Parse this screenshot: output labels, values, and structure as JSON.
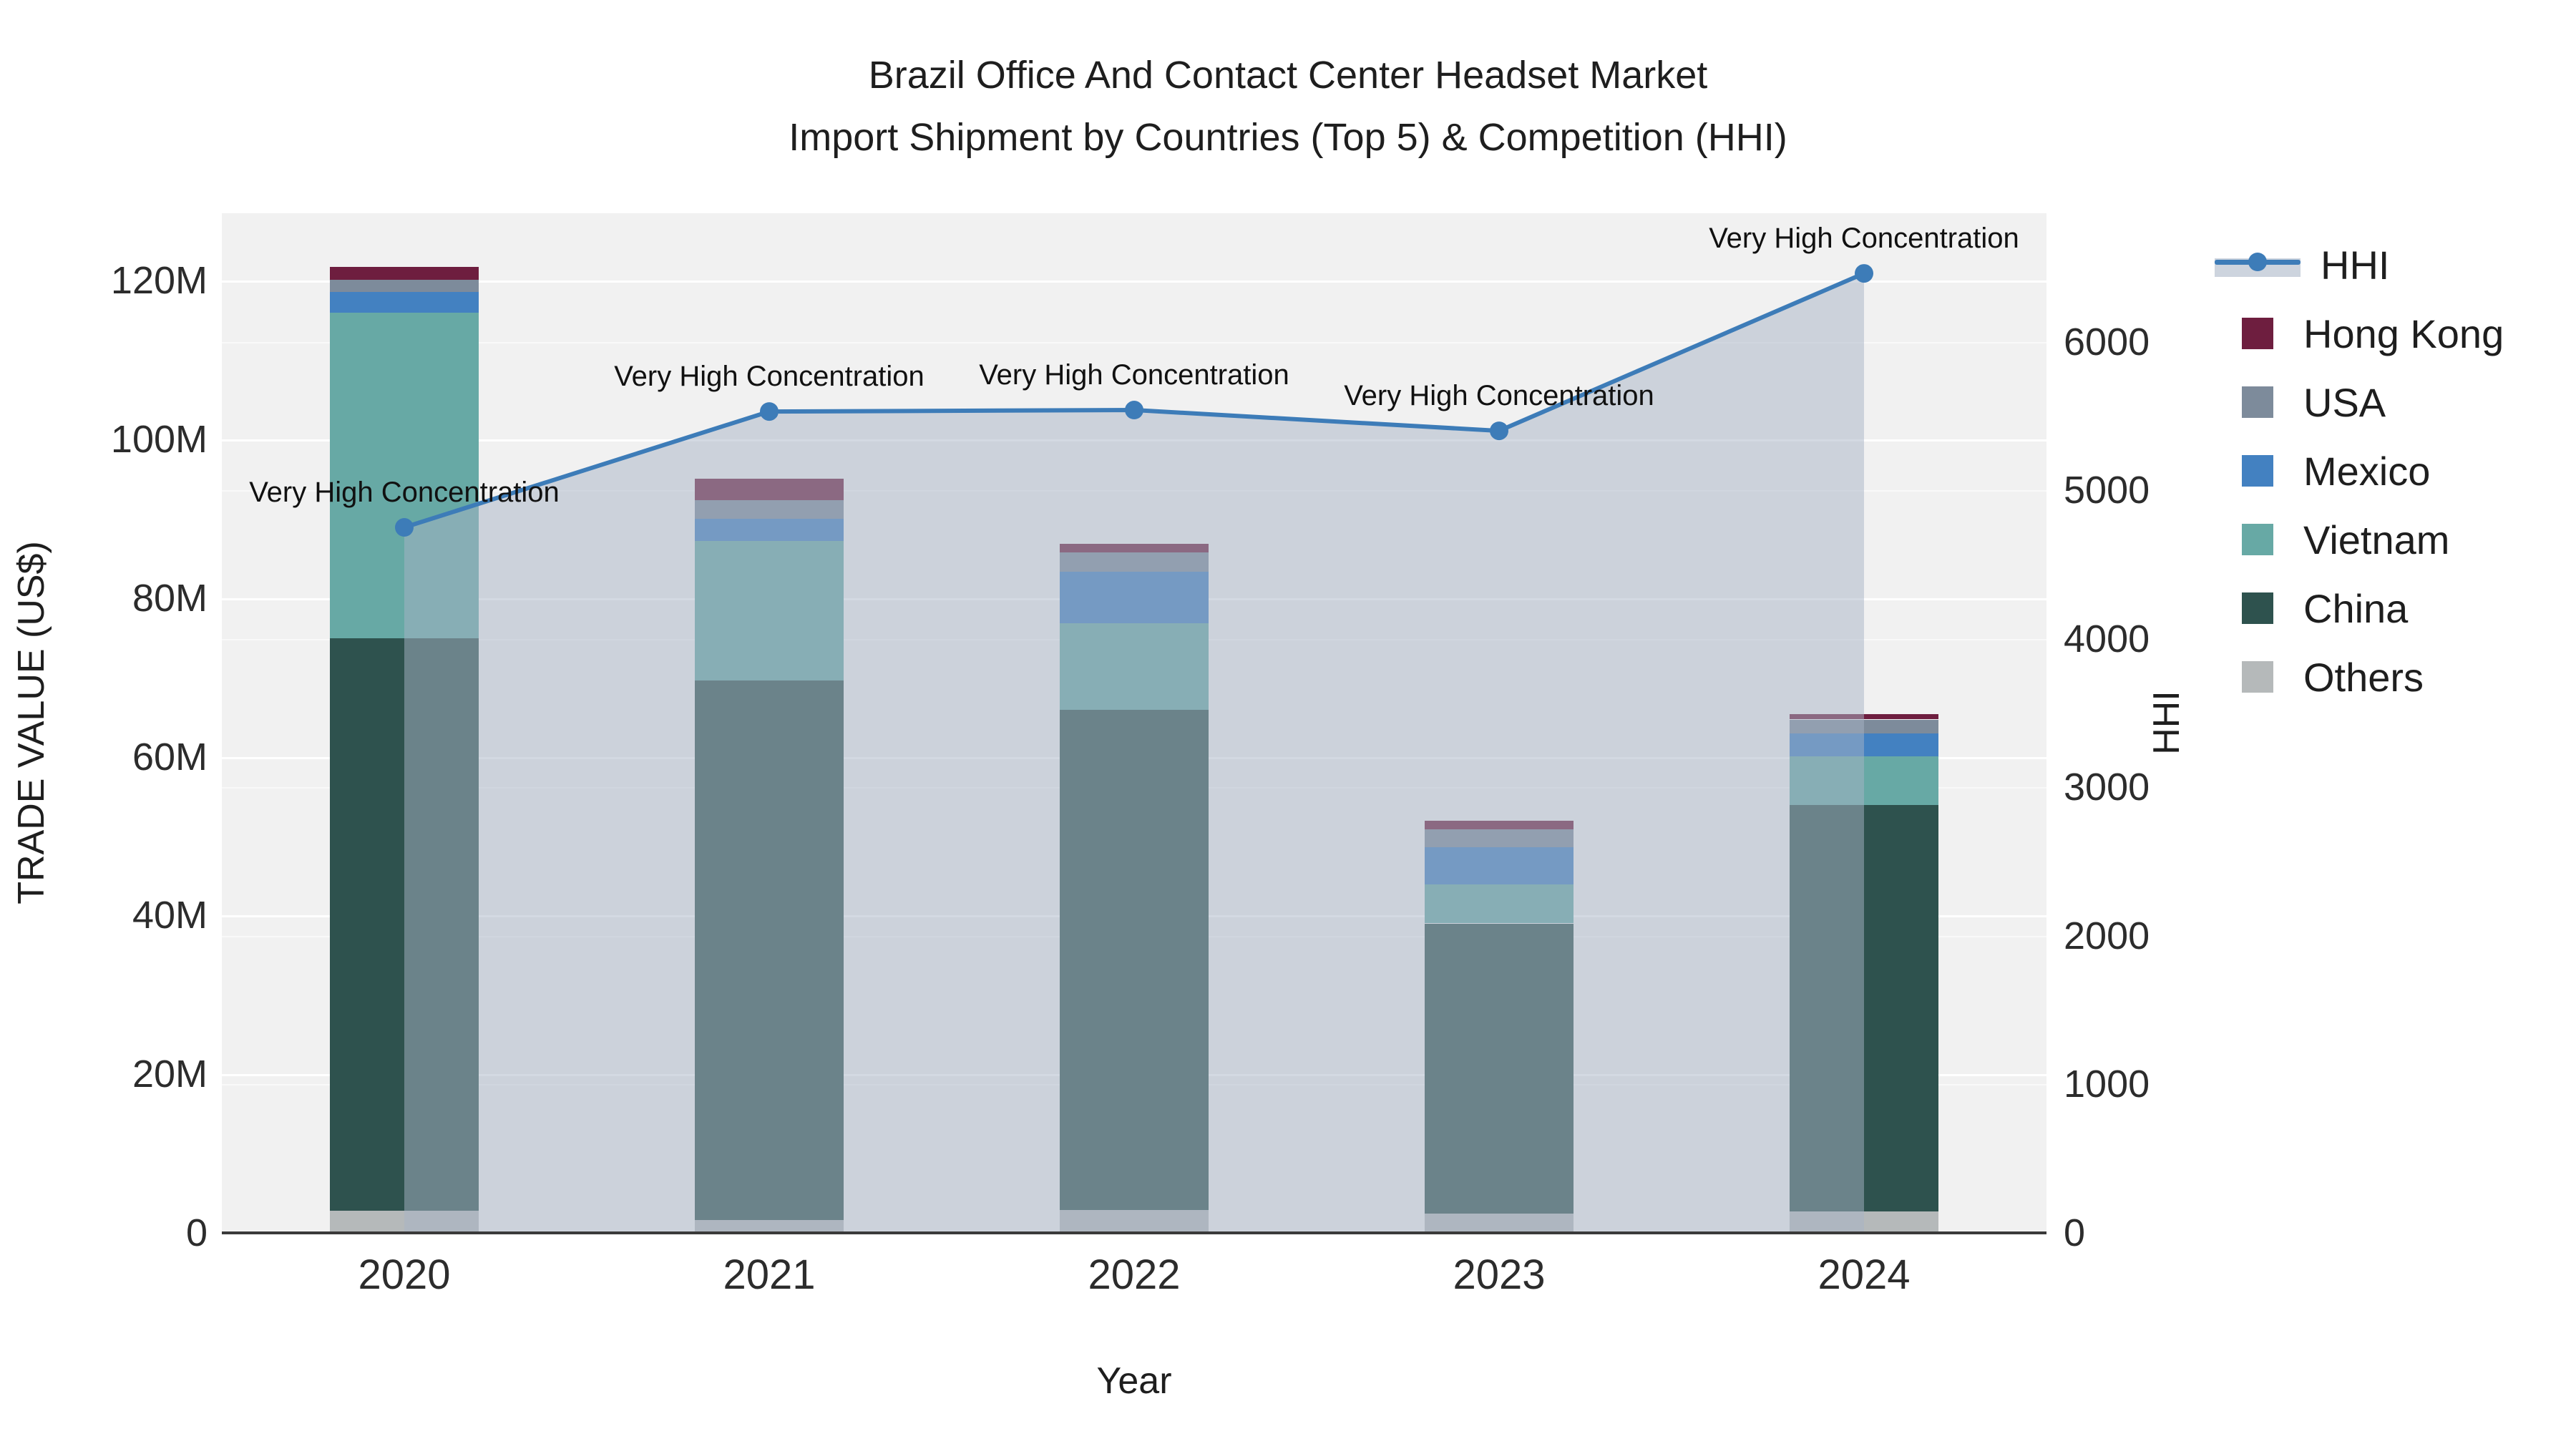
{
  "title": {
    "line1": "Brazil Office And Contact Center Headset Market",
    "line2": "Import Shipment by Countries (Top 5) & Competition (HHI)"
  },
  "axes": {
    "x_title": "Year",
    "y_left_title": "TRADE VALUE (US$)",
    "y_right_title": "HHI",
    "y_left_ticks": [
      {
        "label": "0",
        "value": 0
      },
      {
        "label": "20M",
        "value": 20
      },
      {
        "label": "40M",
        "value": 40
      },
      {
        "label": "60M",
        "value": 60
      },
      {
        "label": "80M",
        "value": 80
      },
      {
        "label": "100M",
        "value": 100
      },
      {
        "label": "120M",
        "value": 120
      }
    ],
    "y_right_ticks": [
      {
        "label": "0",
        "value": 0
      },
      {
        "label": "1000",
        "value": 1000
      },
      {
        "label": "2000",
        "value": 2000
      },
      {
        "label": "3000",
        "value": 3000
      },
      {
        "label": "4000",
        "value": 4000
      },
      {
        "label": "5000",
        "value": 5000
      },
      {
        "label": "6000",
        "value": 6000
      }
    ]
  },
  "legend": [
    {
      "label": "HHI",
      "type": "line",
      "color": "#3d7cb8",
      "fill": "#cdd4de"
    },
    {
      "label": "Hong Kong",
      "type": "square",
      "color": "#6e1e3f"
    },
    {
      "label": "USA",
      "type": "square",
      "color": "#7d8b9b"
    },
    {
      "label": "Mexico",
      "type": "square",
      "color": "#4381c1"
    },
    {
      "label": "Vietnam",
      "type": "square",
      "color": "#67a9a5"
    },
    {
      "label": "China",
      "type": "square",
      "color": "#2e524e"
    },
    {
      "label": "Others",
      "type": "square",
      "color": "#b5b9ba"
    }
  ],
  "chart_data": {
    "type": "bar",
    "stacked": true,
    "categories": [
      "2020",
      "2021",
      "2022",
      "2023",
      "2024"
    ],
    "units": "millions USD",
    "series": [
      {
        "name": "Hong Kong",
        "color": "#6e1e3f",
        "values": [
          1.6,
          2.7,
          1.0,
          1.0,
          0.7
        ]
      },
      {
        "name": "USA",
        "color": "#7d8b9b",
        "values": [
          1.5,
          2.3,
          2.5,
          2.3,
          1.8
        ]
      },
      {
        "name": "Mexico",
        "color": "#4381c1",
        "values": [
          2.6,
          2.8,
          6.5,
          4.7,
          2.8
        ]
      },
      {
        "name": "Vietnam",
        "color": "#67a9a5",
        "values": [
          41.1,
          17.6,
          10.9,
          4.9,
          6.2
        ]
      },
      {
        "name": "China",
        "color": "#2e524e",
        "values": [
          72.1,
          68.0,
          63.0,
          36.6,
          51.2
        ]
      },
      {
        "name": "Others",
        "color": "#b5b9ba",
        "values": [
          2.8,
          1.6,
          2.9,
          2.4,
          2.7
        ]
      }
    ],
    "line_series": {
      "name": "HHI",
      "axis": "right",
      "color": "#3d7cb8",
      "area_fill": "rgba(168,180,198,0.5)",
      "values": [
        4750,
        5530,
        5540,
        5400,
        6460
      ]
    },
    "annotations": [
      {
        "x": "2020",
        "text": "Very High Concentration"
      },
      {
        "x": "2021",
        "text": "Very High Concentration"
      },
      {
        "x": "2022",
        "text": "Very High Concentration"
      },
      {
        "x": "2023",
        "text": "Very High Concentration"
      },
      {
        "x": "2024",
        "text": "Very High Concentration"
      }
    ],
    "title": "Brazil Office And Contact Center Headset Market Import Shipment by Countries (Top 5) & Competition (HHI)",
    "xlabel": "Year",
    "ylabel": "TRADE VALUE (US$)",
    "ylabel_right": "HHI",
    "ylim_left": [
      0,
      128.5
    ],
    "ylim_right": [
      0,
      6865
    ],
    "grid": true,
    "legend_position": "right",
    "plot_bg": "#f1f1f1",
    "axis_line_color": "#3a3a3a"
  }
}
